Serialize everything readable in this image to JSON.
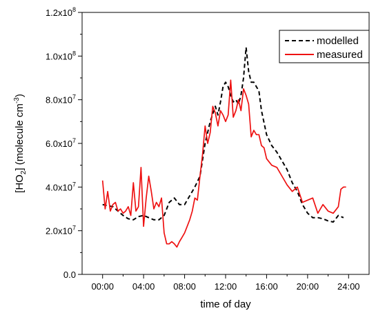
{
  "chart_data": {
    "type": "line",
    "xlabel": "time of day",
    "ylabel_parts": [
      "[HO",
      "2",
      "] (molecule cm",
      "-3",
      ")"
    ],
    "xlim": [
      -2,
      26
    ],
    "ylim": [
      0,
      120000000
    ],
    "x_ticks": [
      {
        "value": 0,
        "label": "00:00"
      },
      {
        "value": 4,
        "label": "04:00"
      },
      {
        "value": 8,
        "label": "08:00"
      },
      {
        "value": 12,
        "label": "12:00"
      },
      {
        "value": 16,
        "label": "16:00"
      },
      {
        "value": 20,
        "label": "20:00"
      },
      {
        "value": 24,
        "label": "24:00"
      }
    ],
    "y_ticks": [
      {
        "value": 0,
        "base": "0.0",
        "exp": ""
      },
      {
        "value": 20000000,
        "base": "2.0x10",
        "exp": "7"
      },
      {
        "value": 40000000,
        "base": "4.0x10",
        "exp": "7"
      },
      {
        "value": 60000000,
        "base": "6.0x10",
        "exp": "7"
      },
      {
        "value": 80000000,
        "base": "8.0x10",
        "exp": "7"
      },
      {
        "value": 100000000,
        "base": "1.0x10",
        "exp": "8"
      },
      {
        "value": 120000000,
        "base": "1.2x10",
        "exp": "8"
      }
    ],
    "grid": false,
    "legend_position": "top-right",
    "series": [
      {
        "name": "modelled",
        "color": "#000000",
        "dash": true,
        "x": [
          0,
          0.5,
          1,
          1.5,
          2,
          2.5,
          3,
          3.5,
          4,
          4.5,
          5,
          5.5,
          6,
          6.5,
          7,
          7.5,
          8,
          8.5,
          9,
          9.5,
          10,
          10.5,
          11,
          11.25,
          11.5,
          11.75,
          12,
          12.25,
          12.5,
          12.75,
          13,
          13.25,
          13.5,
          13.75,
          14,
          14.25,
          14.5,
          14.75,
          15,
          15.25,
          15.5,
          16,
          16.5,
          17,
          17.5,
          18,
          18.5,
          19,
          19.5,
          20,
          20.5,
          21,
          21.5,
          22,
          22.5,
          23,
          23.5
        ],
        "y": [
          32000000,
          31500000,
          31000000,
          29000000,
          27000000,
          25500000,
          25000000,
          26500000,
          27000000,
          26000000,
          25000000,
          25000000,
          27000000,
          33000000,
          35000000,
          32000000,
          32000000,
          36000000,
          40000000,
          45000000,
          60000000,
          70000000,
          77000000,
          73000000,
          79000000,
          86000000,
          88000000,
          86000000,
          82000000,
          79000000,
          80000000,
          78000000,
          82000000,
          90000000,
          104000000,
          93000000,
          88000000,
          88000000,
          86000000,
          84000000,
          75000000,
          64000000,
          59000000,
          56000000,
          52000000,
          48000000,
          42000000,
          38000000,
          32000000,
          28000000,
          26000000,
          26000000,
          25500000,
          24500000,
          24000000,
          27000000,
          26000000
        ]
      },
      {
        "name": "measured",
        "color": "#ee1111",
        "dash": false,
        "x": [
          0,
          0.25,
          0.5,
          0.75,
          1,
          1.25,
          1.5,
          1.75,
          2,
          2.25,
          2.5,
          2.75,
          3,
          3.25,
          3.5,
          3.75,
          4,
          4.25,
          4.5,
          4.75,
          5,
          5.25,
          5.5,
          5.75,
          6,
          6.25,
          6.5,
          6.75,
          7,
          7.25,
          7.5,
          7.75,
          8,
          8.25,
          8.5,
          8.75,
          9,
          9.25,
          9.5,
          9.75,
          10,
          10.25,
          10.5,
          10.75,
          11,
          11.25,
          11.5,
          11.75,
          12,
          12.25,
          12.5,
          12.75,
          13,
          13.25,
          13.5,
          13.75,
          14,
          14.25,
          14.5,
          14.75,
          15,
          15.25,
          15.5,
          15.75,
          16,
          16.5,
          17,
          17.5,
          18,
          18.5,
          19,
          19.5,
          20,
          20.5,
          21,
          21.5,
          22,
          22.5,
          23,
          23.25,
          23.5,
          23.75
        ],
        "y": [
          43000000,
          30000000,
          38000000,
          29000000,
          32000000,
          33000000,
          29000000,
          30000000,
          28000000,
          29000000,
          31000000,
          27000000,
          42000000,
          29000000,
          31000000,
          49000000,
          22000000,
          35000000,
          45000000,
          38000000,
          30000000,
          33000000,
          31000000,
          35000000,
          19000000,
          14000000,
          14000000,
          15000000,
          14000000,
          12500000,
          15000000,
          17000000,
          19000000,
          22000000,
          25000000,
          29000000,
          35000000,
          34000000,
          45000000,
          55000000,
          68000000,
          60000000,
          65000000,
          77000000,
          74000000,
          68000000,
          75000000,
          73000000,
          70000000,
          73000000,
          89000000,
          72000000,
          75000000,
          80000000,
          75000000,
          85000000,
          82000000,
          78000000,
          63000000,
          66000000,
          64000000,
          64000000,
          59000000,
          58000000,
          53000000,
          50000000,
          49000000,
          45000000,
          41000000,
          38000000,
          40000000,
          33000000,
          34000000,
          35000000,
          28000000,
          32000000,
          29000000,
          28000000,
          31000000,
          39000000,
          40000000,
          40000000
        ]
      }
    ]
  }
}
